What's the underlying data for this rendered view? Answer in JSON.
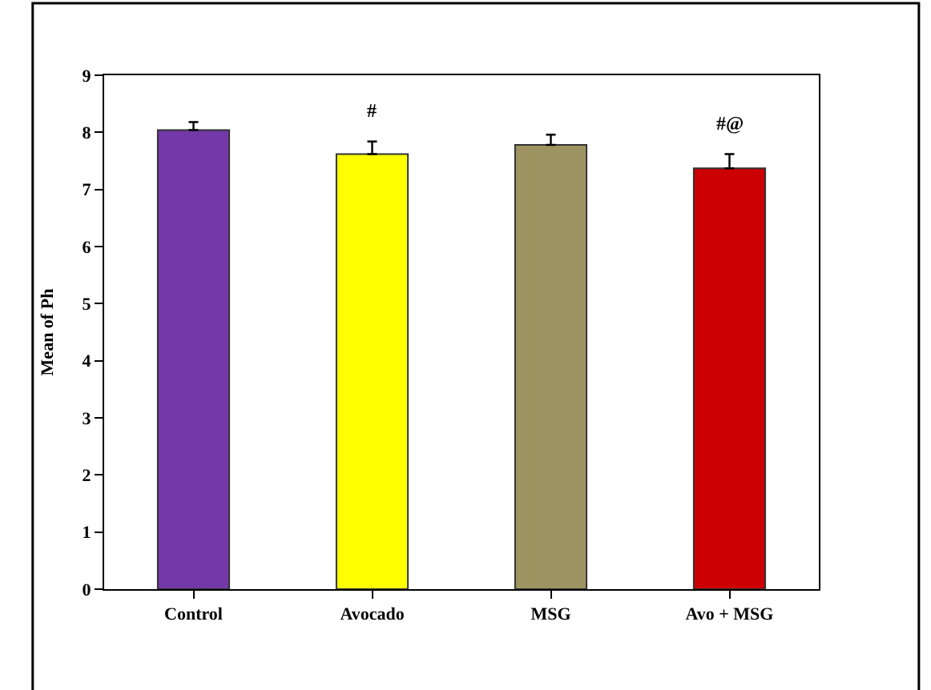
{
  "chart_data": {
    "type": "bar",
    "ylabel": "Mean of Ph",
    "categories": [
      "Control",
      "Avocado",
      "MSG",
      "Avo + MSG"
    ],
    "values": [
      8.04,
      7.62,
      7.78,
      7.37
    ],
    "colors": [
      "#7438a8",
      "#ffff00",
      "#9e9462",
      "#cc0000"
    ],
    "errors": [
      0.14,
      0.22,
      0.18,
      0.25
    ],
    "value_labels": [
      null,
      "#",
      null,
      "#@"
    ],
    "ylim": [
      0,
      9
    ],
    "yticks": [
      0,
      1,
      2,
      3,
      4,
      5,
      6,
      7,
      8,
      9
    ]
  }
}
